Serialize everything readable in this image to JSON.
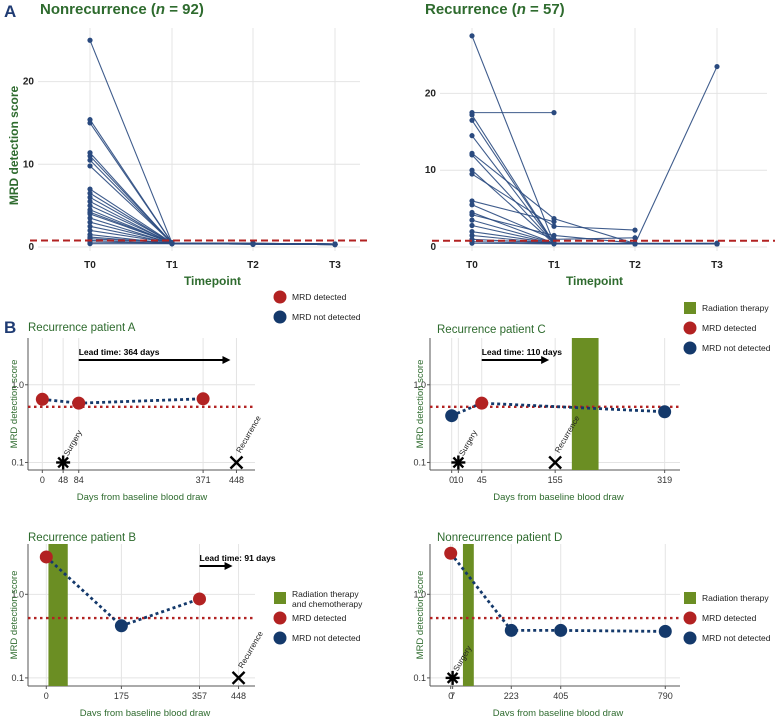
{
  "labels": {
    "panel_a": "A",
    "panel_b": "B"
  },
  "colors": {
    "line": "#2a4a7f",
    "threshold": "#b22222",
    "detected": "#b22222",
    "not_detected": "#14396b",
    "radiation": "#6b8e23",
    "title": "#2e6b2e"
  },
  "chart_data": [
    {
      "type": "line",
      "title_main": "Nonrecurrence (",
      "title_n": "n",
      "title_rest": " = 92)",
      "xlabel": "Timepoint",
      "ylabel": "MRD detection score",
      "categories": [
        "T0",
        "T1",
        "T2",
        "T3"
      ],
      "ylim": [
        0,
        26
      ],
      "yticks": [
        "0",
        "10",
        "20"
      ],
      "threshold": 0.55,
      "series": [
        {
          "values": [
            25.0,
            0.5,
            0.4,
            0.35
          ]
        },
        {
          "values": [
            15.4,
            0.5,
            0.4,
            0.35
          ]
        },
        {
          "values": [
            15.0,
            0.5,
            0.45,
            0.35
          ]
        },
        {
          "values": [
            11.4,
            0.45,
            0.35,
            0.3
          ]
        },
        {
          "values": [
            11.0,
            0.5,
            0.4,
            0.35
          ]
        },
        {
          "values": [
            10.5,
            0.45,
            0.4,
            0.35
          ]
        },
        {
          "values": [
            9.8,
            0.5,
            0.4,
            0.35
          ]
        },
        {
          "values": [
            7.0,
            0.5,
            0.45,
            0.35
          ]
        },
        {
          "values": [
            6.5,
            0.45,
            0.35,
            0.3
          ]
        },
        {
          "values": [
            6.0,
            0.5,
            0.4,
            0.35
          ]
        },
        {
          "values": [
            5.5,
            0.4,
            0.35,
            0.3
          ]
        },
        {
          "values": [
            5.0,
            0.5,
            0.4,
            0.35
          ]
        },
        {
          "values": [
            4.5,
            0.45,
            0.4,
            0.35
          ]
        },
        {
          "values": [
            4.0,
            0.5,
            0.4,
            0.35
          ]
        },
        {
          "values": [
            3.5,
            0.4,
            0.35,
            0.3
          ]
        },
        {
          "values": [
            3.0,
            0.5,
            0.4,
            0.35
          ]
        },
        {
          "values": [
            2.5,
            0.45,
            0.4,
            0.35
          ]
        },
        {
          "values": [
            2.0,
            0.5,
            0.4,
            0.35
          ]
        },
        {
          "values": [
            1.5,
            0.4,
            0.35,
            0.3
          ]
        },
        {
          "values": [
            1.2,
            0.45,
            0.4,
            0.35
          ]
        },
        {
          "values": [
            1.0,
            0.5,
            0.4,
            0.35
          ]
        },
        {
          "values": [
            0.8,
            0.4,
            0.35,
            0.3
          ]
        },
        {
          "values": [
            0.6,
            0.45,
            0.4,
            0.35
          ]
        },
        {
          "values": [
            0.4,
            0.4,
            0.35,
            0.3
          ]
        },
        {
          "values": [
            4.2,
            0.5,
            0.45,
            0.35
          ]
        }
      ]
    },
    {
      "type": "line",
      "title_main": "Recurrence (",
      "title_n": "n",
      "title_rest": " = 57)",
      "xlabel": "Timepoint",
      "ylabel": "",
      "categories": [
        "T0",
        "T1",
        "T2",
        "T3"
      ],
      "ylim": [
        0,
        28
      ],
      "yticks": [
        "0",
        "10",
        "20"
      ],
      "threshold": 0.55,
      "series": [
        {
          "values": [
            27.5,
            0.5,
            0.4,
            0.4
          ]
        },
        {
          "values": [
            17.5,
            17.5,
            null,
            null
          ]
        },
        {
          "values": [
            17.2,
            0.5,
            0.4,
            23.5
          ]
        },
        {
          "values": [
            16.5,
            0.45,
            0.4,
            0.4
          ]
        },
        {
          "values": [
            14.5,
            0.5,
            0.45,
            0.4
          ]
        },
        {
          "values": [
            12.2,
            3.7,
            0.45,
            0.5
          ]
        },
        {
          "values": [
            12.0,
            0.5,
            0.4,
            0.4
          ]
        },
        {
          "values": [
            10.0,
            0.45,
            0.4,
            0.4
          ]
        },
        {
          "values": [
            9.5,
            2.7,
            2.2,
            null
          ]
        },
        {
          "values": [
            6.0,
            3.3,
            null,
            null
          ]
        },
        {
          "values": [
            5.5,
            1.0,
            1.2,
            null
          ]
        },
        {
          "values": [
            4.5,
            0.5,
            0.4,
            0.4
          ]
        },
        {
          "values": [
            4.2,
            1.5,
            0.5,
            0.4
          ]
        },
        {
          "values": [
            3.5,
            0.5,
            0.4,
            null
          ]
        },
        {
          "values": [
            2.8,
            0.45,
            0.4,
            0.4
          ]
        },
        {
          "values": [
            2.0,
            0.5,
            0.45,
            null
          ]
        },
        {
          "values": [
            1.5,
            0.45,
            0.4,
            0.4
          ]
        },
        {
          "values": [
            1.0,
            0.5,
            0.4,
            null
          ]
        },
        {
          "values": [
            0.7,
            0.45,
            0.4,
            0.4
          ]
        },
        {
          "values": [
            0.5,
            0.4,
            0.4,
            null
          ]
        }
      ]
    },
    {
      "type": "line",
      "title": "Recurrence patient A",
      "xlabel": "Days from baseline blood draw",
      "ylabel": "MRD detection score",
      "x_scale": "linear",
      "y_scale": "log",
      "xlim": [
        -10,
        470
      ],
      "ylim": [
        0.08,
        4
      ],
      "yticks": [
        "0.1",
        "1.0"
      ],
      "xticks": [
        "0",
        "48",
        "84",
        "371",
        "448"
      ],
      "points": [
        {
          "x": 0,
          "y": 0.65,
          "detected": true
        },
        {
          "x": 84,
          "y": 0.58,
          "detected": true
        },
        {
          "x": 371,
          "y": 0.66,
          "detected": true
        }
      ],
      "threshold": 0.52,
      "surgery": {
        "x": 48,
        "label": "Surgery"
      },
      "recurrence": {
        "x": 448,
        "label": "Recurrence"
      },
      "lead_time": {
        "label": "Lead time: 364 days",
        "from": 84,
        "to": 448
      },
      "radiation": null,
      "legend": [
        "MRD detected",
        "MRD not detected"
      ]
    },
    {
      "type": "line",
      "title": "Recurrence patient C",
      "xlabel": "Days from baseline blood draw",
      "ylabel": "MRD detection score",
      "x_scale": "linear",
      "y_scale": "log",
      "xlim": [
        -10,
        330
      ],
      "ylim": [
        0.08,
        4
      ],
      "yticks": [
        "0.1",
        "1.0"
      ],
      "xticks": [
        "0",
        "10",
        "45",
        "155",
        "319"
      ],
      "points": [
        {
          "x": 0,
          "y": 0.4,
          "detected": false
        },
        {
          "x": 45,
          "y": 0.58,
          "detected": true
        },
        {
          "x": 319,
          "y": 0.45,
          "detected": false
        }
      ],
      "threshold": 0.52,
      "surgery": {
        "x": 10,
        "label": "Surgery"
      },
      "recurrence": {
        "x": 155,
        "label": "Recurrence"
      },
      "lead_time": {
        "label": "Lead time: 110 days",
        "from": 45,
        "to": 155
      },
      "radiation": {
        "from": 180,
        "to": 220
      },
      "legend": [
        "Radiation therapy",
        "MRD detected",
        "MRD not detected"
      ]
    },
    {
      "type": "line",
      "title": "Recurrence patient B",
      "xlabel": "Days from baseline blood draw",
      "ylabel": "MRD detection score",
      "x_scale": "linear",
      "y_scale": "log",
      "xlim": [
        -10,
        470
      ],
      "ylim": [
        0.08,
        4
      ],
      "yticks": [
        "0.1",
        "1.0"
      ],
      "xticks": [
        "0",
        "175",
        "357",
        "448"
      ],
      "points": [
        {
          "x": 0,
          "y": 2.8,
          "detected": true
        },
        {
          "x": 175,
          "y": 0.42,
          "detected": false
        },
        {
          "x": 357,
          "y": 0.88,
          "detected": true
        }
      ],
      "threshold": 0.52,
      "surgery": null,
      "recurrence": {
        "x": 448,
        "label": "Recurrence"
      },
      "lead_time": {
        "label": "Lead time: 91 days",
        "from": 357,
        "to": 448
      },
      "radiation": {
        "from": 5,
        "to": 50
      },
      "legend": [
        "Radiation therapy and chemotherapy",
        "MRD detected",
        "MRD not detected"
      ],
      "legend_first_line1": "Radiation therapy",
      "legend_first_line2": "and chemotherapy"
    },
    {
      "type": "line",
      "title": "Nonrecurrence patient D",
      "xlabel": "Days from baseline blood draw",
      "ylabel": "MRD detection score",
      "x_scale": "linear",
      "y_scale": "log",
      "xlim": [
        -10,
        800
      ],
      "ylim": [
        0.08,
        4
      ],
      "yticks": [
        "0.1",
        "1.0"
      ],
      "xticks": [
        "0",
        "7",
        "223",
        "405",
        "790"
      ],
      "points": [
        {
          "x": 0,
          "y": 3.1,
          "detected": true
        },
        {
          "x": 223,
          "y": 0.37,
          "detected": false
        },
        {
          "x": 405,
          "y": 0.37,
          "detected": false
        },
        {
          "x": 790,
          "y": 0.36,
          "detected": false
        }
      ],
      "threshold": 0.52,
      "surgery": {
        "x": 7,
        "label": "Surgery"
      },
      "recurrence": null,
      "lead_time": null,
      "radiation": {
        "from": 45,
        "to": 85
      },
      "legend": [
        "Radiation therapy",
        "MRD detected",
        "MRD not detected"
      ]
    }
  ]
}
